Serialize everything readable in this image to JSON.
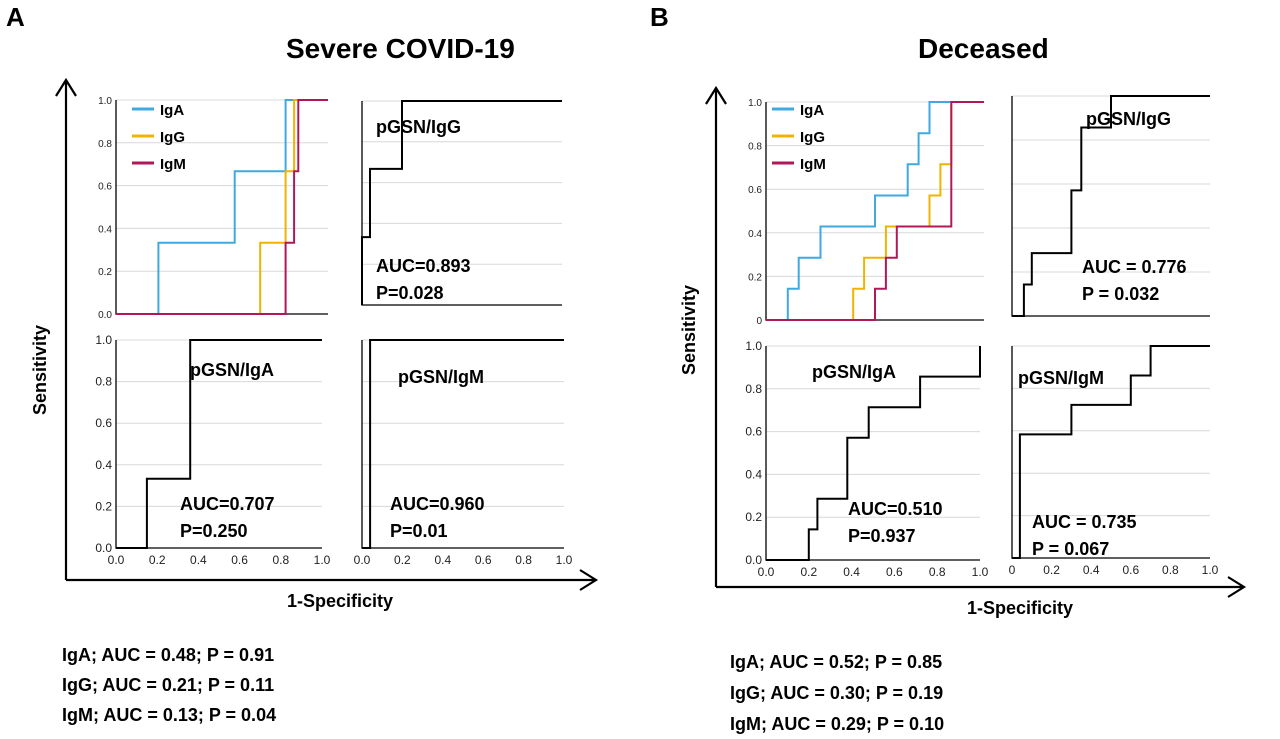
{
  "panels": [
    {
      "letter": "A",
      "title": "Severe COVID-19",
      "ylabel": "Sensitivity",
      "xlabel": "1-Specificity",
      "notes": [
        "IgA; AUC = 0.48; P = 0.91",
        "IgG; AUC = 0.21; P = 0.11",
        "IgM; AUC = 0.13; P = 0.04"
      ]
    },
    {
      "letter": "B",
      "title": "Deceased",
      "ylabel": "Sensitivity",
      "xlabel": "1-Specificity",
      "notes": [
        "IgA; AUC = 0.52; P = 0.85",
        "IgG; AUC = 0.30; P = 0.19",
        "IgM; AUC = 0.29; P = 0.10"
      ]
    }
  ],
  "colors": {
    "IgA": "#3fa9e0",
    "IgG": "#f0b400",
    "IgM": "#b0185a",
    "pGSN": "#000000"
  },
  "chart_data": [
    {
      "id": "A-ig",
      "type": "line",
      "xlim": [
        0,
        1
      ],
      "ylim": [
        0,
        1
      ],
      "grid": true,
      "legend": "top-left",
      "ticks_y": [
        "0.0",
        "0.2",
        "0.4",
        "0.6",
        "0.8",
        "1.0"
      ],
      "series": [
        {
          "name": "IgA",
          "color": "#3fa9e0",
          "x": [
            0,
            0.2,
            0.2,
            0.56,
            0.56,
            0.8,
            0.8,
            1.0
          ],
          "y": [
            0,
            0,
            0.333,
            0.333,
            0.667,
            0.667,
            1.0,
            1.0
          ]
        },
        {
          "name": "IgG",
          "color": "#f0b400",
          "x": [
            0,
            0.68,
            0.68,
            0.8,
            0.8,
            0.84,
            0.84,
            1.0
          ],
          "y": [
            0,
            0,
            0.333,
            0.333,
            0.667,
            0.667,
            1.0,
            1.0
          ]
        },
        {
          "name": "IgM",
          "color": "#b0185a",
          "x": [
            0,
            0.8,
            0.8,
            0.84,
            0.84,
            0.86,
            0.86,
            1.0
          ],
          "y": [
            0,
            0,
            0.333,
            0.333,
            0.667,
            0.667,
            1.0,
            1.0
          ]
        }
      ]
    },
    {
      "id": "A-igg",
      "type": "line",
      "xlim": [
        0,
        1
      ],
      "ylim": [
        0,
        1
      ],
      "grid": true,
      "title": "pGSN/IgG",
      "auc": "AUC=0.893",
      "p": "P=0.028",
      "series": [
        {
          "name": "pGSN/IgG",
          "color": "#000000",
          "x": [
            0,
            0,
            0.04,
            0.04,
            0.08,
            0.08,
            0.2,
            0.2,
            1.0
          ],
          "y": [
            0,
            0.333,
            0.333,
            0.667,
            0.667,
            0.667,
            0.667,
            1.0,
            1.0
          ]
        }
      ]
    },
    {
      "id": "A-iga",
      "type": "line",
      "xlim": [
        0,
        1
      ],
      "ylim": [
        0,
        1
      ],
      "grid": true,
      "ticks_x": [
        "0.0",
        "0.2",
        "0.4",
        "0.6",
        "0.8",
        "1.0"
      ],
      "ticks_y": [
        "0.0",
        "0.2",
        "0.4",
        "0.6",
        "0.8",
        "1.0"
      ],
      "title": "pGSN/IgA",
      "auc": "AUC=0.707",
      "p": "P=0.250",
      "series": [
        {
          "name": "pGSN/IgA",
          "color": "#000000",
          "x": [
            0,
            0.15,
            0.15,
            0.36,
            0.36,
            1.0
          ],
          "y": [
            0,
            0,
            0.333,
            0.333,
            1.0,
            1.0
          ]
        }
      ]
    },
    {
      "id": "A-igm",
      "type": "line",
      "xlim": [
        0,
        1
      ],
      "ylim": [
        0,
        1
      ],
      "grid": true,
      "ticks_x": [
        "0.0",
        "0.2",
        "0.4",
        "0.6",
        "0.8",
        "1.0"
      ],
      "title": "pGSN/IgM",
      "auc": "AUC=0.960",
      "p": "P=0.01",
      "series": [
        {
          "name": "pGSN/IgM",
          "color": "#000000",
          "x": [
            0,
            0.04,
            0.04,
            1.0
          ],
          "y": [
            0,
            0,
            1.0,
            1.0
          ]
        }
      ]
    },
    {
      "id": "B-ig",
      "type": "line",
      "xlim": [
        0,
        1
      ],
      "ylim": [
        0,
        1
      ],
      "grid": true,
      "legend": "top-left",
      "ticks_y": [
        "0",
        "0.2",
        "0.4",
        "0.6",
        "0.8",
        "1.0"
      ],
      "series": [
        {
          "name": "IgA",
          "color": "#3fa9e0",
          "x": [
            0,
            0.1,
            0.1,
            0.15,
            0.15,
            0.25,
            0.25,
            0.5,
            0.5,
            0.65,
            0.65,
            0.7,
            0.7,
            0.75,
            0.75,
            0.8,
            0.8,
            1.0
          ],
          "y": [
            0,
            0,
            0.143,
            0.143,
            0.286,
            0.286,
            0.429,
            0.429,
            0.571,
            0.571,
            0.714,
            0.714,
            0.857,
            0.857,
            1.0,
            1.0,
            1.0,
            1.0
          ]
        },
        {
          "name": "IgG",
          "color": "#f0b400",
          "x": [
            0,
            0.4,
            0.4,
            0.45,
            0.45,
            0.55,
            0.55,
            0.75,
            0.75,
            0.8,
            0.8,
            0.85,
            0.85,
            1.0
          ],
          "y": [
            0,
            0,
            0.143,
            0.143,
            0.286,
            0.286,
            0.429,
            0.429,
            0.571,
            0.571,
            0.714,
            0.714,
            1.0,
            1.0
          ]
        },
        {
          "name": "IgM",
          "color": "#b0185a",
          "x": [
            0,
            0.5,
            0.5,
            0.55,
            0.55,
            0.6,
            0.6,
            0.85,
            0.85,
            1.0
          ],
          "y": [
            0,
            0,
            0.143,
            0.143,
            0.286,
            0.286,
            0.429,
            0.429,
            1.0,
            1.0
          ]
        }
      ]
    },
    {
      "id": "B-igg",
      "type": "line",
      "xlim": [
        0,
        1
      ],
      "ylim": [
        0,
        1
      ],
      "grid": true,
      "title": "pGSN/IgG",
      "auc": "AUC = 0.776",
      "p": "P = 0.032",
      "series": [
        {
          "name": "pGSN/IgG",
          "color": "#000000",
          "x": [
            0,
            0.06,
            0.06,
            0.1,
            0.1,
            0.15,
            0.15,
            0.3,
            0.3,
            0.35,
            0.35,
            0.4,
            0.4,
            0.5,
            0.5,
            1.0
          ],
          "y": [
            0,
            0,
            0.143,
            0.143,
            0.286,
            0.286,
            0.286,
            0.286,
            0.571,
            0.571,
            0.857,
            0.857,
            0.857,
            0.857,
            1.0,
            1.0
          ]
        }
      ]
    },
    {
      "id": "B-iga",
      "type": "line",
      "xlim": [
        0,
        1
      ],
      "ylim": [
        0,
        1
      ],
      "grid": true,
      "ticks_x": [
        "0.0",
        "0.2",
        "0.4",
        "0.6",
        "0.8",
        "1.0"
      ],
      "ticks_y": [
        "0.0",
        "0.2",
        "0.4",
        "0.6",
        "0.8",
        "1.0"
      ],
      "title": "pGSN/IgA",
      "auc": "AUC=0.510",
      "p": "P=0.937",
      "series": [
        {
          "name": "pGSN/IgA",
          "color": "#000000",
          "x": [
            0,
            0.2,
            0.2,
            0.24,
            0.24,
            0.3,
            0.3,
            0.38,
            0.38,
            0.48,
            0.48,
            0.72,
            0.72,
            0.8,
            0.8,
            1.0,
            1.0
          ],
          "y": [
            0,
            0,
            0.143,
            0.143,
            0.286,
            0.286,
            0.286,
            0.286,
            0.571,
            0.571,
            0.714,
            0.714,
            0.857,
            0.857,
            0.857,
            0.857,
            1.0
          ]
        }
      ]
    },
    {
      "id": "B-igm",
      "type": "line",
      "xlim": [
        0,
        1
      ],
      "ylim": [
        0,
        1
      ],
      "grid": true,
      "ticks_x": [
        "0",
        "0.2",
        "0.4",
        "0.6",
        "0.8",
        "1.0"
      ],
      "title": "pGSN/IgM",
      "auc": "AUC = 0.735",
      "p": "P = 0.067",
      "series": [
        {
          "name": "pGSN/IgM",
          "color": "#000000",
          "x": [
            0,
            0.04,
            0.04,
            0.3,
            0.3,
            0.6,
            0.6,
            0.7,
            0.7,
            1.0
          ],
          "y": [
            0,
            0,
            0.583,
            0.583,
            0.722,
            0.722,
            0.861,
            0.861,
            1.0,
            1.0
          ]
        }
      ]
    }
  ]
}
